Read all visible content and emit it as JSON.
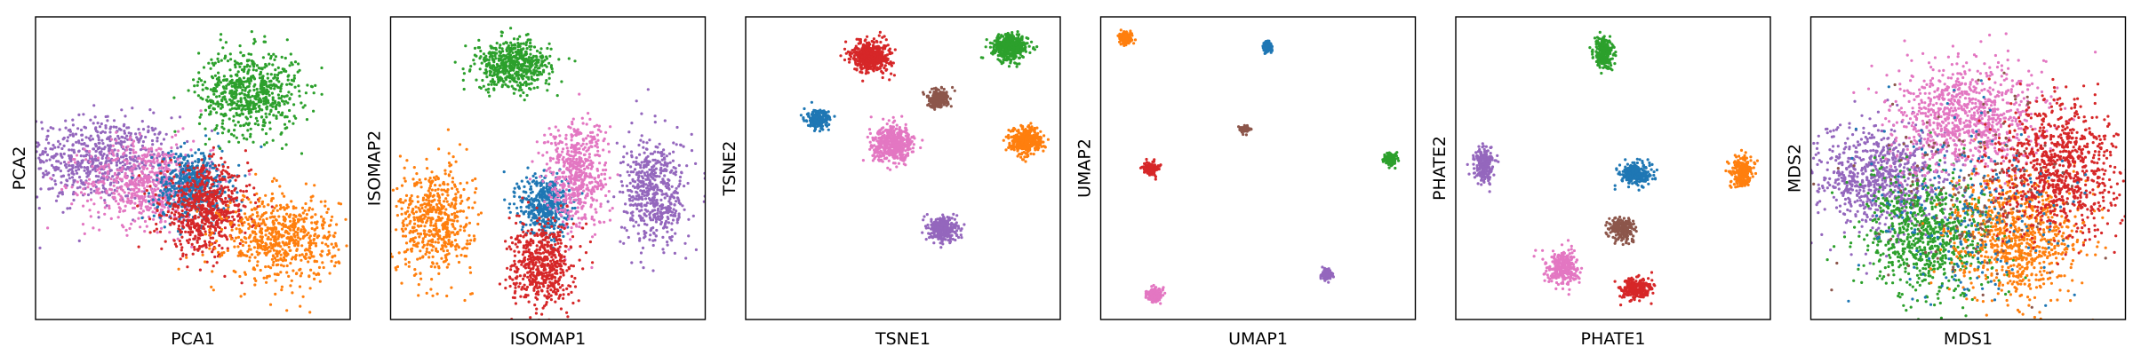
{
  "chart_data": [
    {
      "type": "scatter",
      "title": "",
      "xlabel": "PCA1",
      "ylabel": "PCA2",
      "grid": false,
      "ticks": false,
      "legend": "none",
      "xlim": [
        0,
        100
      ],
      "ylim": [
        0,
        100
      ],
      "series": [
        {
          "color": "#9467bd",
          "clusters": [
            {
              "x": 20,
              "y": 53,
              "sx": 12,
              "sy": 7,
              "n": 650
            }
          ]
        },
        {
          "color": "#e377c2",
          "clusters": [
            {
              "x": 36,
              "y": 45,
              "sx": 10,
              "sy": 7,
              "n": 650
            }
          ]
        },
        {
          "color": "#2ca02c",
          "clusters": [
            {
              "x": 68,
              "y": 75,
              "sx": 8,
              "sy": 7,
              "n": 650
            }
          ]
        },
        {
          "color": "#1f77b4",
          "clusters": [
            {
              "x": 50,
              "y": 44,
              "sx": 6,
              "sy": 6,
              "n": 500
            }
          ]
        },
        {
          "color": "#d62728",
          "clusters": [
            {
              "x": 54,
              "y": 36,
              "sx": 7,
              "sy": 7,
              "n": 650
            }
          ]
        },
        {
          "color": "#ff7f0e",
          "clusters": [
            {
              "x": 78,
              "y": 27,
              "sx": 9,
              "sy": 7,
              "n": 650
            }
          ]
        }
      ]
    },
    {
      "type": "scatter",
      "title": "",
      "xlabel": "ISOMAP1",
      "ylabel": "ISOMAP2",
      "grid": false,
      "ticks": false,
      "legend": "none",
      "xlim": [
        0,
        100
      ],
      "ylim": [
        0,
        100
      ],
      "series": [
        {
          "color": "#2ca02c",
          "clusters": [
            {
              "x": 39,
              "y": 84,
              "sx": 6,
              "sy": 4,
              "n": 550
            }
          ]
        },
        {
          "color": "#ff7f0e",
          "clusters": [
            {
              "x": 14,
              "y": 33,
              "sx": 6,
              "sy": 9,
              "n": 550
            }
          ]
        },
        {
          "color": "#1f77b4",
          "clusters": [
            {
              "x": 49,
              "y": 38,
              "sx": 4,
              "sy": 5,
              "n": 450
            }
          ]
        },
        {
          "color": "#e377c2",
          "clusters": [
            {
              "x": 59,
              "y": 48,
              "sx": 5,
              "sy": 9,
              "n": 550
            }
          ]
        },
        {
          "color": "#9467bd",
          "clusters": [
            {
              "x": 84,
              "y": 42,
              "sx": 5,
              "sy": 9,
              "n": 550
            }
          ]
        },
        {
          "color": "#d62728",
          "clusters": [
            {
              "x": 48,
              "y": 18,
              "sx": 5,
              "sy": 7,
              "n": 550
            }
          ]
        }
      ]
    },
    {
      "type": "scatter",
      "title": "",
      "xlabel": "TSNE1",
      "ylabel": "TSNE2",
      "grid": false,
      "ticks": false,
      "legend": "none",
      "xlim": [
        0,
        100
      ],
      "ylim": [
        0,
        100
      ],
      "series": [
        {
          "color": "#d62728",
          "clusters": [
            {
              "x": 40,
              "y": 87,
              "sx": 3,
              "sy": 2.5,
              "n": 500
            }
          ]
        },
        {
          "color": "#2ca02c",
          "clusters": [
            {
              "x": 84,
              "y": 90,
              "sx": 2.8,
              "sy": 2.2,
              "n": 450
            }
          ]
        },
        {
          "color": "#8c564b",
          "clusters": [
            {
              "x": 61,
              "y": 73,
              "sx": 1.7,
              "sy": 1.5,
              "n": 220
            }
          ]
        },
        {
          "color": "#1f77b4",
          "clusters": [
            {
              "x": 23,
              "y": 66,
              "sx": 1.7,
              "sy": 1.5,
              "n": 220
            }
          ]
        },
        {
          "color": "#e377c2",
          "clusters": [
            {
              "x": 47,
              "y": 58,
              "sx": 3.3,
              "sy": 2.8,
              "n": 500
            }
          ]
        },
        {
          "color": "#ff7f0e",
          "clusters": [
            {
              "x": 89,
              "y": 59,
              "sx": 2.5,
              "sy": 2.2,
              "n": 400
            }
          ]
        },
        {
          "color": "#9467bd",
          "clusters": [
            {
              "x": 63,
              "y": 30,
              "sx": 2.2,
              "sy": 2.0,
              "n": 330
            }
          ]
        }
      ]
    },
    {
      "type": "scatter",
      "title": "",
      "xlabel": "UMAP1",
      "ylabel": "UMAP2",
      "grid": false,
      "ticks": false,
      "legend": "none",
      "xlim": [
        0,
        100
      ],
      "ylim": [
        0,
        100
      ],
      "series": [
        {
          "color": "#ff7f0e",
          "clusters": [
            {
              "x": 8,
              "y": 93,
              "sx": 1.0,
              "sy": 0.9,
              "n": 160
            }
          ]
        },
        {
          "color": "#1f77b4",
          "clusters": [
            {
              "x": 53,
              "y": 90,
              "sx": 0.6,
              "sy": 0.9,
              "n": 110
            }
          ]
        },
        {
          "color": "#8c564b",
          "clusters": [
            {
              "x": 46,
              "y": 63,
              "sx": 0.7,
              "sy": 0.5,
              "n": 90
            }
          ]
        },
        {
          "color": "#d62728",
          "clusters": [
            {
              "x": 16,
              "y": 50,
              "sx": 1.1,
              "sy": 1.0,
              "n": 170
            }
          ]
        },
        {
          "color": "#2ca02c",
          "clusters": [
            {
              "x": 92,
              "y": 53,
              "sx": 1.0,
              "sy": 1.0,
              "n": 160
            }
          ]
        },
        {
          "color": "#9467bd",
          "clusters": [
            {
              "x": 72,
              "y": 15,
              "sx": 0.8,
              "sy": 0.8,
              "n": 130
            }
          ]
        },
        {
          "color": "#e377c2",
          "clusters": [
            {
              "x": 17,
              "y": 8,
              "sx": 1.2,
              "sy": 1.1,
              "n": 180
            }
          ]
        }
      ]
    },
    {
      "type": "scatter",
      "title": "",
      "xlabel": "PHATE1",
      "ylabel": "PHATE2",
      "grid": false,
      "ticks": false,
      "legend": "none",
      "xlim": [
        0,
        100
      ],
      "ylim": [
        0,
        100
      ],
      "series": [
        {
          "color": "#2ca02c",
          "clusters": [
            {
              "x": 47,
              "y": 88,
              "sx": 1.5,
              "sy": 2.5,
              "n": 260
            }
          ]
        },
        {
          "color": "#9467bd",
          "clusters": [
            {
              "x": 9,
              "y": 51,
              "sx": 1.5,
              "sy": 2.8,
              "n": 220
            }
          ]
        },
        {
          "color": "#1f77b4",
          "clusters": [
            {
              "x": 57,
              "y": 48,
              "sx": 2.5,
              "sy": 1.8,
              "n": 260
            }
          ]
        },
        {
          "color": "#ff7f0e",
          "clusters": [
            {
              "x": 91,
              "y": 49,
              "sx": 1.8,
              "sy": 2.5,
              "n": 220
            }
          ]
        },
        {
          "color": "#8c564b",
          "clusters": [
            {
              "x": 53,
              "y": 30,
              "sx": 2.0,
              "sy": 2.0,
              "n": 220
            }
          ]
        },
        {
          "color": "#e377c2",
          "clusters": [
            {
              "x": 34,
              "y": 17,
              "sx": 2.5,
              "sy": 2.8,
              "n": 300
            }
          ]
        },
        {
          "color": "#d62728",
          "clusters": [
            {
              "x": 57,
              "y": 10,
              "sx": 2.5,
              "sy": 1.8,
              "n": 260
            }
          ]
        }
      ]
    },
    {
      "type": "scatter",
      "title": "",
      "xlabel": "MDS1",
      "ylabel": "MDS2",
      "grid": false,
      "ticks": false,
      "legend": "none",
      "xlim": [
        0,
        100
      ],
      "ylim": [
        0,
        100
      ],
      "series": [
        {
          "color": "#9467bd",
          "clusters": [
            {
              "x": 22,
              "y": 46,
              "sx": 11,
              "sy": 9,
              "n": 800
            }
          ]
        },
        {
          "color": "#2ca02c",
          "clusters": [
            {
              "x": 38,
              "y": 28,
              "sx": 11,
              "sy": 10,
              "n": 800
            }
          ]
        },
        {
          "color": "#ff7f0e",
          "clusters": [
            {
              "x": 65,
              "y": 27,
              "sx": 10,
              "sy": 10,
              "n": 800
            }
          ]
        },
        {
          "color": "#e377c2",
          "clusters": [
            {
              "x": 50,
              "y": 67,
              "sx": 12,
              "sy": 9,
              "n": 900
            }
          ]
        },
        {
          "color": "#d62728",
          "clusters": [
            {
              "x": 78,
              "y": 50,
              "sx": 10,
              "sy": 11,
              "n": 900
            }
          ]
        },
        {
          "color": "#1f77b4",
          "clusters": [
            {
              "x": 50,
              "y": 35,
              "sx": 16,
              "sy": 16,
              "n": 250
            }
          ]
        },
        {
          "color": "#8c564b",
          "clusters": [
            {
              "x": 50,
              "y": 45,
              "sx": 16,
              "sy": 16,
              "n": 150
            }
          ]
        }
      ]
    }
  ]
}
